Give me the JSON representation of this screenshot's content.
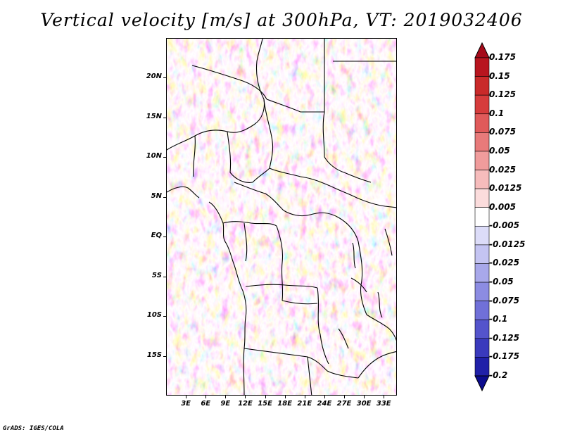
{
  "title": "Vertical velocity [m/s] at 300hPa, VT: 2019032406",
  "credit": "GrADS: IGES/COLA",
  "map": {
    "projection": "lat-lon",
    "lon_range": [
      0,
      35
    ],
    "lat_range": [
      -20,
      25
    ],
    "lat_labels": [
      "20N",
      "15N",
      "10N",
      "5N",
      "EQ",
      "5S",
      "10S",
      "15S"
    ],
    "lon_labels": [
      "3E",
      "6E",
      "9E",
      "12E",
      "15E",
      "18E",
      "21E",
      "24E",
      "27E",
      "30E",
      "33E"
    ],
    "field": "vertical velocity",
    "units": "m/s",
    "level": "300hPa",
    "valid_time": "2019032406"
  },
  "colorbar": {
    "labels": [
      "0.175",
      "0.15",
      "0.125",
      "0.1",
      "0.075",
      "0.05",
      "0.025",
      "0.0125",
      "0.005",
      "-0.005",
      "-0.0125",
      "-0.025",
      "-0.05",
      "-0.075",
      "-0.1",
      "-0.125",
      "-0.175",
      "-0.2"
    ],
    "colors": [
      "#a50a1a",
      "#b8151f",
      "#c92a2a",
      "#d63c3c",
      "#e05a5a",
      "#e87a7a",
      "#f09c9c",
      "#f6bcbc",
      "#fbdcdc",
      "#ffffff",
      "#dcdcf8",
      "#c4c4f2",
      "#a8a8ea",
      "#8c8ce2",
      "#7070d8",
      "#5454cc",
      "#3a3abd",
      "#2020a8",
      "#0c0c8e"
    ]
  }
}
